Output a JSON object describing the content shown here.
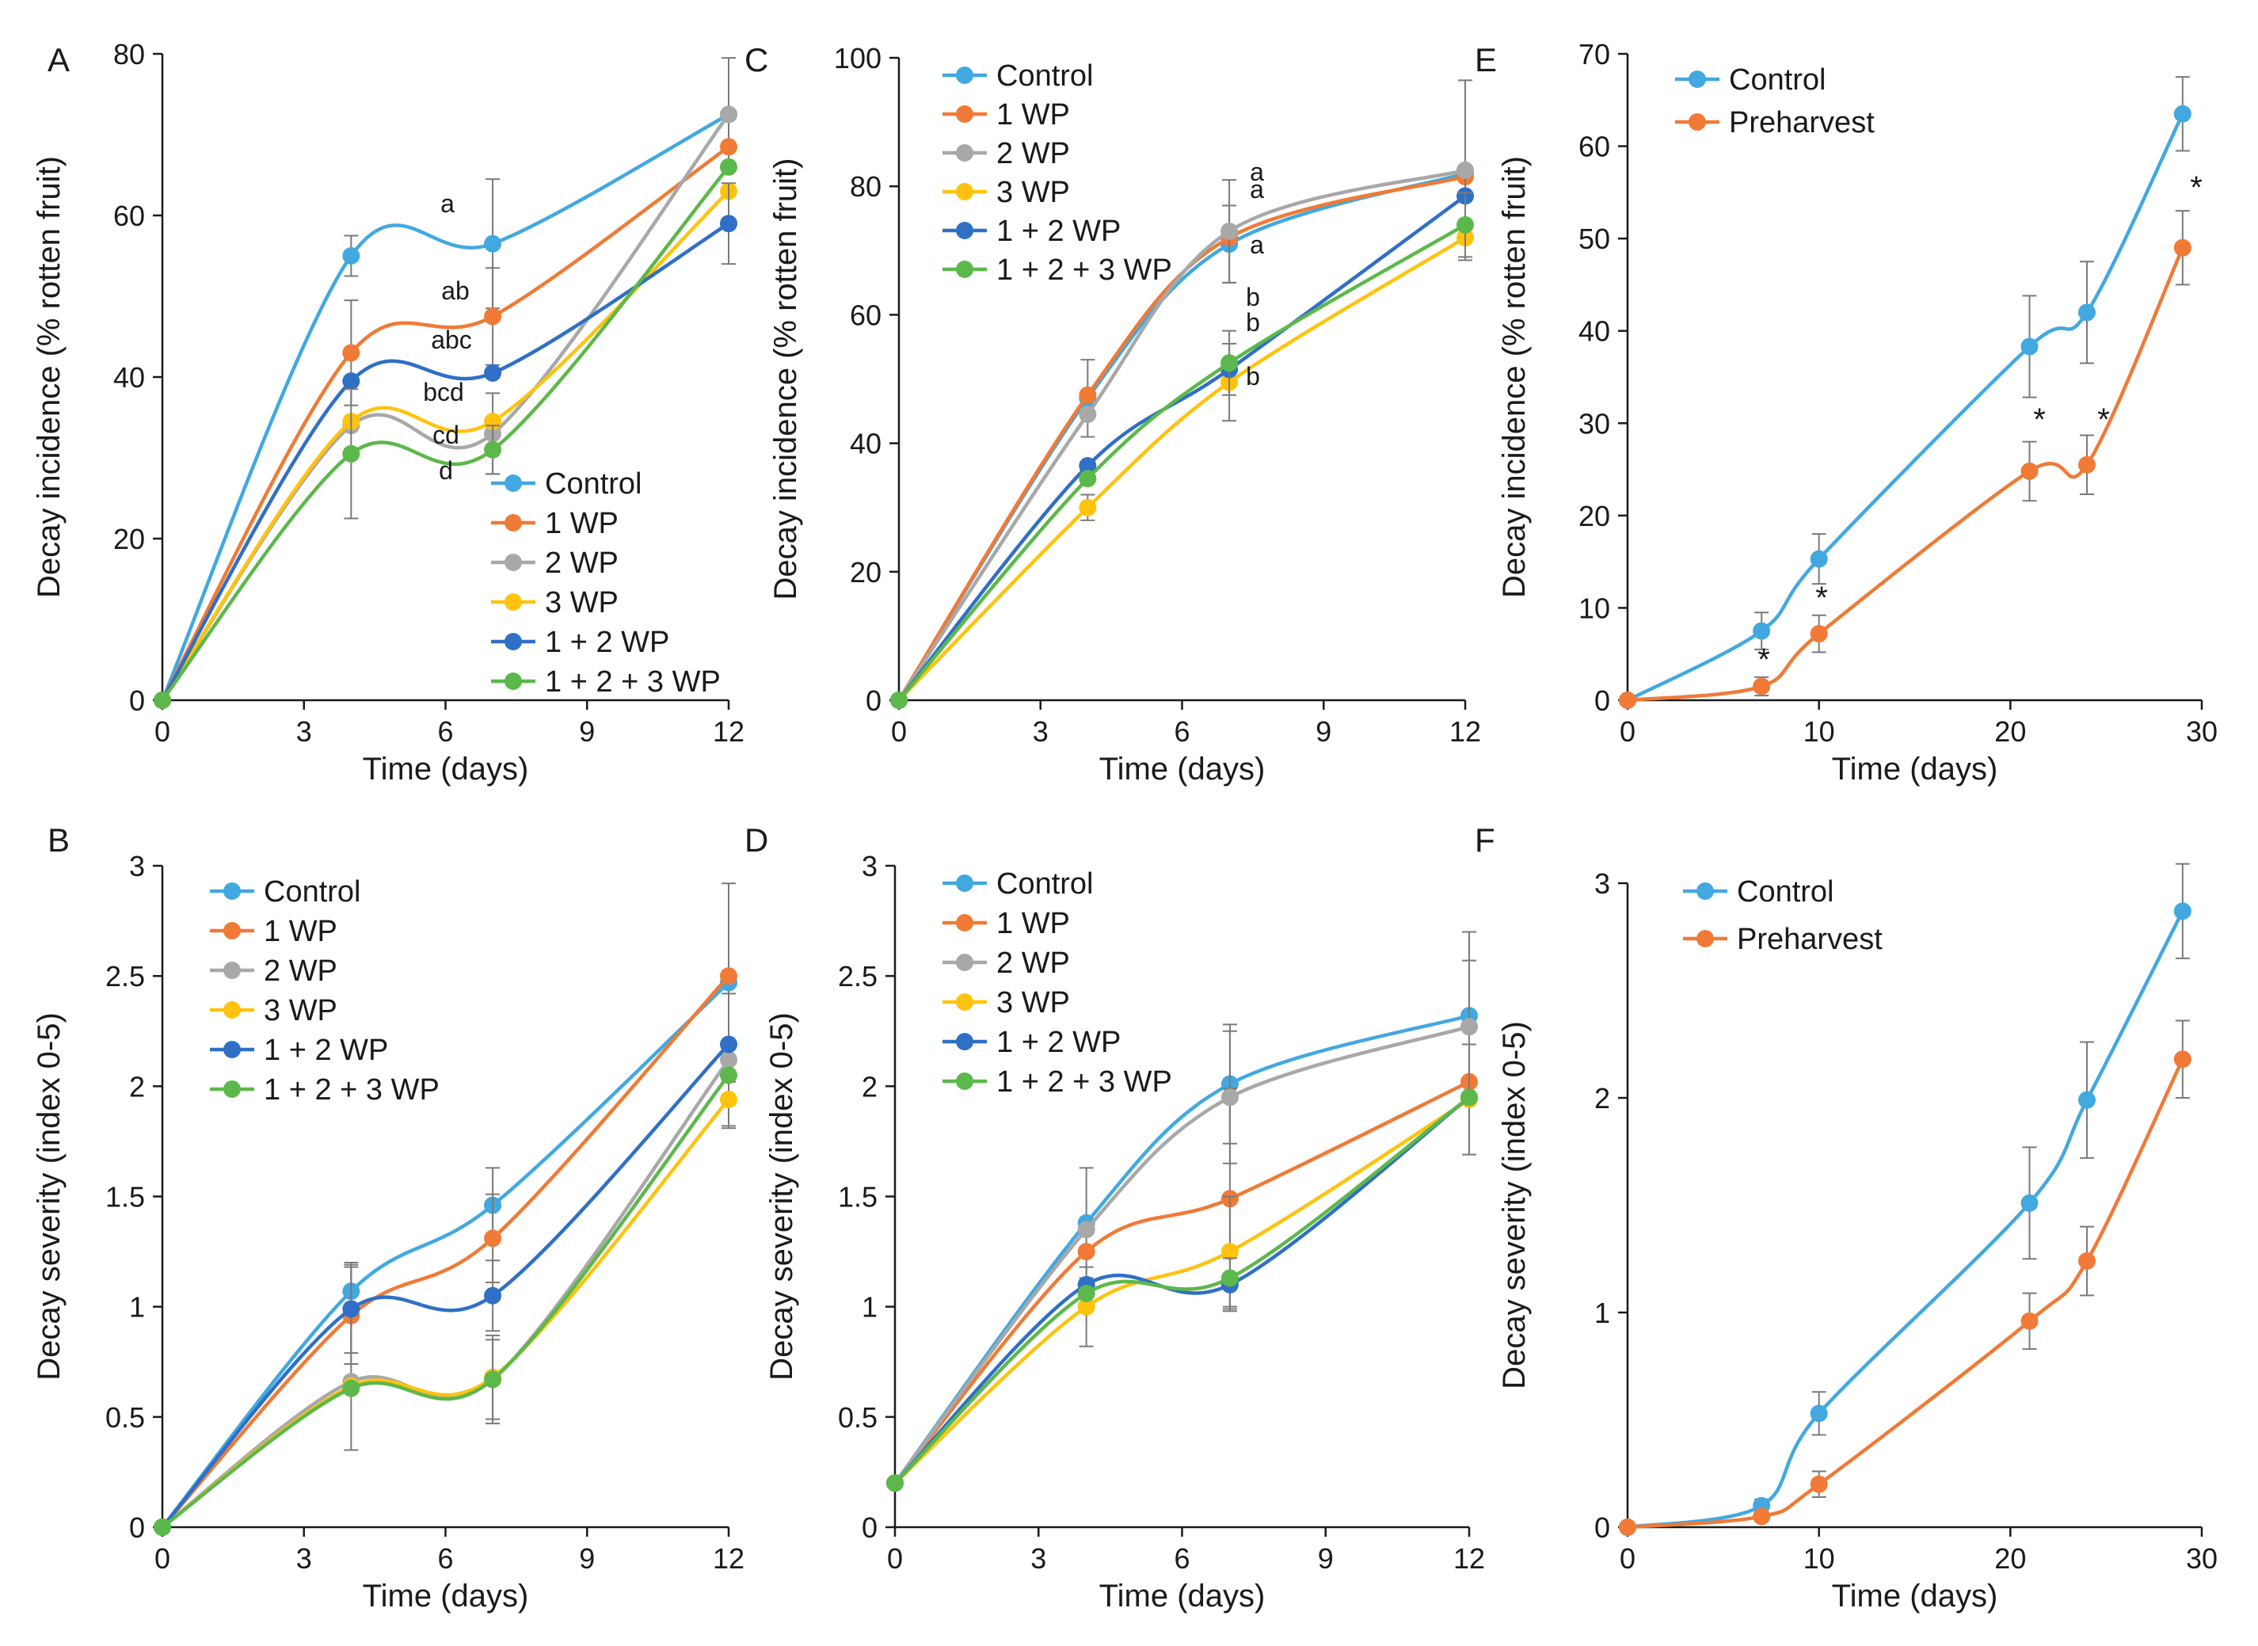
{
  "figure": {
    "series_colors": {
      "Control": "#42A8E0",
      "1 WP": "#F07A36",
      "2 WP": "#A8A8A8",
      "3 WP": "#FFC30D",
      "1 + 2 WP": "#2F6FC6",
      "1 + 2 + 3 WP": "#5CB84A",
      "Preharvest": "#F07A36"
    }
  },
  "chart_data": [
    {
      "id": "A",
      "panel_label": "A",
      "type": "line",
      "xlabel": "Time (days)",
      "ylabel": "Decay incidence (% rotten fruit)",
      "xlim": [
        0,
        12
      ],
      "ylim": [
        0,
        80
      ],
      "xticks": [
        0,
        3,
        6,
        9,
        12
      ],
      "yticks": [
        0,
        20,
        40,
        60,
        80
      ],
      "legend": "bottom-right",
      "x": [
        0,
        4,
        7,
        12
      ],
      "series": [
        {
          "name": "Control",
          "values": [
            0,
            55,
            56.5,
            72.5
          ],
          "err": [
            0,
            2.5,
            8,
            7
          ]
        },
        {
          "name": "1 WP",
          "values": [
            0,
            43,
            47.5,
            68.5
          ],
          "err": [
            0,
            6.5,
            6,
            0
          ]
        },
        {
          "name": "2 WP",
          "values": [
            0,
            34,
            33,
            72.5
          ],
          "err": [
            0,
            0,
            5,
            0
          ]
        },
        {
          "name": "3 WP",
          "values": [
            0,
            34.5,
            34.5,
            63
          ],
          "err": [
            0,
            0,
            0,
            0
          ]
        },
        {
          "name": "1 + 2 WP",
          "values": [
            0,
            39.5,
            40.5,
            59
          ],
          "err": [
            0,
            0,
            0,
            5
          ]
        },
        {
          "name": "1 + 2 + 3 WP",
          "values": [
            0,
            30.5,
            31,
            66
          ],
          "err": [
            0,
            8,
            3,
            0
          ]
        }
      ],
      "annotations": [
        "a",
        "ab",
        "abc",
        "bcd",
        "cd",
        "d"
      ]
    },
    {
      "id": "C",
      "panel_label": "C",
      "type": "line",
      "xlabel": "Time (days)",
      "ylabel": "Decay incidence (% rotten fruit)",
      "xlim": [
        0,
        12
      ],
      "ylim": [
        0,
        100
      ],
      "xticks": [
        0,
        3,
        6,
        9,
        12
      ],
      "yticks": [
        0,
        20,
        40,
        60,
        80,
        100
      ],
      "legend": "top-left",
      "x": [
        0,
        4,
        7,
        12
      ],
      "series": [
        {
          "name": "Control",
          "values": [
            0,
            47,
            71,
            82
          ],
          "err": [
            0,
            6,
            6,
            0
          ]
        },
        {
          "name": "1 WP",
          "values": [
            0,
            47.5,
            72,
            81.5
          ],
          "err": [
            0,
            0,
            0,
            0
          ]
        },
        {
          "name": "2 WP",
          "values": [
            0,
            44.5,
            73,
            82.5
          ],
          "err": [
            0,
            0,
            8,
            14
          ]
        },
        {
          "name": "3 WP",
          "values": [
            0,
            30,
            49.5,
            72
          ],
          "err": [
            0,
            2,
            6,
            0
          ]
        },
        {
          "name": "1 + 2 WP",
          "values": [
            0,
            36.5,
            51.5,
            78.5
          ],
          "err": [
            0,
            0,
            0,
            0
          ]
        },
        {
          "name": "1 + 2 + 3 WP",
          "values": [
            0,
            34.5,
            52.5,
            74
          ],
          "err": [
            0,
            0,
            5,
            5
          ]
        }
      ],
      "annotations": [
        "a",
        "a",
        "a",
        "b",
        "b",
        "b"
      ]
    },
    {
      "id": "E",
      "panel_label": "E",
      "type": "line",
      "xlabel": "Time (days)",
      "ylabel": "Decay incidence (% rotten fruit)",
      "xlim": [
        0,
        30
      ],
      "ylim": [
        0,
        70
      ],
      "xticks": [
        0,
        10,
        20,
        30
      ],
      "yticks": [
        0,
        10,
        20,
        30,
        40,
        50,
        60,
        70
      ],
      "legend": "top-left",
      "x": [
        0,
        7,
        10,
        21,
        24,
        29
      ],
      "series": [
        {
          "name": "Control",
          "values": [
            0,
            7.5,
            15.3,
            38.3,
            42,
            63.5
          ],
          "err": [
            0,
            2,
            2.7,
            5.5,
            5.5,
            4
          ]
        },
        {
          "name": "Preharvest",
          "values": [
            0,
            1.5,
            7.2,
            24.8,
            25.5,
            49
          ],
          "err": [
            0,
            1,
            2,
            3.2,
            3.2,
            4
          ]
        }
      ],
      "annotations": [
        "*",
        "*",
        "*",
        "*",
        "*"
      ]
    },
    {
      "id": "B",
      "panel_label": "B",
      "type": "line",
      "xlabel": "Time (days)",
      "ylabel": "Decay severity (index 0-5)",
      "xlim": [
        0,
        12
      ],
      "ylim": [
        0,
        3
      ],
      "xticks": [
        0,
        3,
        6,
        9,
        12
      ],
      "yticks": [
        0,
        0.5,
        1,
        1.5,
        2,
        2.5,
        3
      ],
      "legend": "top-left",
      "x": [
        0,
        4,
        7,
        12
      ],
      "series": [
        {
          "name": "Control",
          "values": [
            0,
            1.07,
            1.46,
            2.47
          ],
          "err": [
            0,
            0.13,
            0.17,
            0.45
          ]
        },
        {
          "name": "1 WP",
          "values": [
            0,
            0.96,
            1.31,
            2.5
          ],
          "err": [
            0,
            0.22,
            0.2,
            0
          ]
        },
        {
          "name": "2 WP",
          "values": [
            0,
            0.66,
            0.67,
            2.12
          ],
          "err": [
            0,
            0.31,
            0.18,
            0.3
          ]
        },
        {
          "name": "3 WP",
          "values": [
            0,
            0.64,
            0.68,
            1.94
          ],
          "err": [
            0,
            0,
            0,
            0.13
          ]
        },
        {
          "name": "1 + 2 WP",
          "values": [
            0,
            0.99,
            1.05,
            2.19
          ],
          "err": [
            0,
            0.2,
            0.16,
            0
          ]
        },
        {
          "name": "1 + 2 + 3 WP",
          "values": [
            0,
            0.63,
            0.67,
            2.05
          ],
          "err": [
            0,
            0,
            0.2,
            0
          ]
        }
      ]
    },
    {
      "id": "D",
      "panel_label": "D",
      "type": "line",
      "xlabel": "Time (days)",
      "ylabel": "Decay severity (index 0-5)",
      "xlim": [
        0,
        12
      ],
      "ylim": [
        0,
        3
      ],
      "xticks": [
        0,
        3,
        6,
        9,
        12
      ],
      "yticks": [
        0,
        0.5,
        1,
        1.5,
        2,
        2.5,
        3
      ],
      "legend": "top-left",
      "x": [
        0,
        4,
        7,
        12
      ],
      "series": [
        {
          "name": "Control",
          "values": [
            0.2,
            1.38,
            2.01,
            2.32
          ],
          "err": [
            0,
            0.25,
            0.27,
            0.38
          ]
        },
        {
          "name": "1 WP",
          "values": [
            0.2,
            1.25,
            1.49,
            2.02
          ],
          "err": [
            0,
            0,
            0.5,
            0
          ]
        },
        {
          "name": "2 WP",
          "values": [
            0.2,
            1.35,
            1.95,
            2.27
          ],
          "err": [
            0,
            0,
            0.3,
            0.3
          ]
        },
        {
          "name": "3 WP",
          "values": [
            0.2,
            1,
            1.25,
            1.94
          ],
          "err": [
            0,
            0.18,
            0.25,
            0.25
          ]
        },
        {
          "name": "1 + 2 WP",
          "values": [
            0.2,
            1.1,
            1.1,
            1.95
          ],
          "err": [
            0,
            0,
            0.12,
            0
          ]
        },
        {
          "name": "1 + 2 + 3 WP",
          "values": [
            0.2,
            1.06,
            1.13,
            1.95
          ],
          "err": [
            0,
            0,
            0,
            0
          ]
        }
      ]
    },
    {
      "id": "F",
      "panel_label": "F",
      "type": "line",
      "xlabel": "Time (days)",
      "ylabel": "Decay severity (index 0-5)",
      "xlim": [
        0,
        30
      ],
      "ylim": [
        0,
        3
      ],
      "xticks": [
        0,
        10,
        20,
        30
      ],
      "yticks": [
        0,
        1,
        2,
        3
      ],
      "legend": "top-left",
      "x": [
        0,
        7,
        10,
        21,
        24,
        29
      ],
      "series": [
        {
          "name": "Control",
          "values": [
            0,
            0.1,
            0.53,
            1.51,
            1.99,
            2.87
          ],
          "err": [
            0,
            0.03,
            0.1,
            0.26,
            0.27,
            0.22
          ]
        },
        {
          "name": "Preharvest",
          "values": [
            0,
            0.05,
            0.2,
            0.96,
            1.24,
            2.18
          ],
          "err": [
            0,
            0.02,
            0.06,
            0.13,
            0.16,
            0.18
          ]
        }
      ]
    }
  ]
}
